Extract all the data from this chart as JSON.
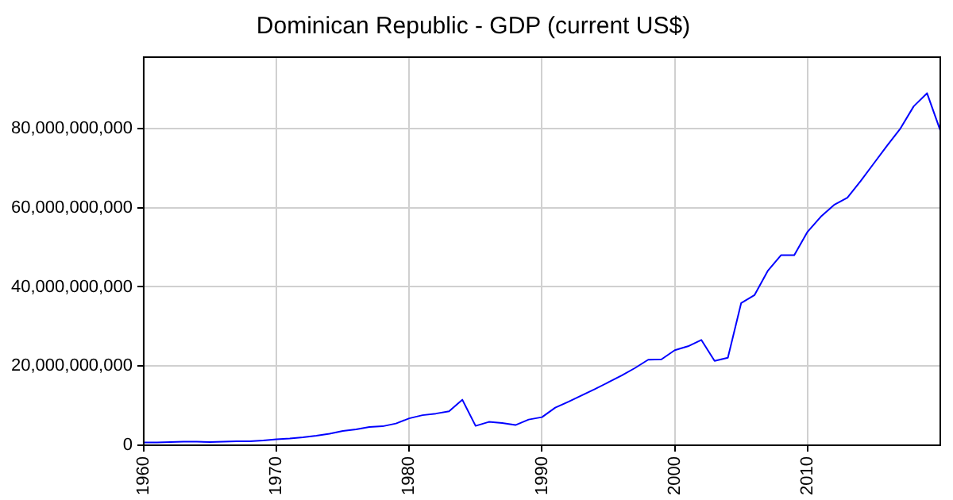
{
  "chart_data": {
    "type": "line",
    "title": "Dominican Republic - GDP (current US$)",
    "x": [
      1960,
      1961,
      1962,
      1963,
      1964,
      1965,
      1966,
      1967,
      1968,
      1969,
      1970,
      1971,
      1972,
      1973,
      1974,
      1975,
      1976,
      1977,
      1978,
      1979,
      1980,
      1981,
      1982,
      1983,
      1984,
      1985,
      1986,
      1987,
      1988,
      1989,
      1990,
      1991,
      1992,
      1993,
      1994,
      1995,
      1996,
      1997,
      1998,
      1999,
      2000,
      2001,
      2002,
      2003,
      2004,
      2005,
      2006,
      2007,
      2008,
      2009,
      2010,
      2011,
      2012,
      2013,
      2014,
      2015,
      2016,
      2017,
      2018,
      2019,
      2020
    ],
    "series": [
      {
        "color": "#0000ff",
        "values": [
          700000000,
          700000000,
          800000000,
          900000000,
          900000000,
          800000000,
          900000000,
          1000000000,
          1000000000,
          1200000000,
          1500000000,
          1700000000,
          2000000000,
          2400000000,
          2900000000,
          3600000000,
          4000000000,
          4600000000,
          4800000000,
          5500000000,
          6800000000,
          7600000000,
          8000000000,
          8600000000,
          11500000000,
          4900000000,
          5900000000,
          5600000000,
          5100000000,
          6500000000,
          7100000000,
          9500000000,
          11000000000,
          12600000000,
          14200000000,
          15900000000,
          17600000000,
          19500000000,
          21600000000,
          21700000000,
          24000000000,
          25000000000,
          26600000000,
          21300000000,
          22100000000,
          35900000000,
          37900000000,
          44000000000,
          48000000000,
          48000000000,
          53900000000,
          57700000000,
          60700000000,
          62500000000,
          66700000000,
          71200000000,
          75700000000,
          80000000000,
          85600000000,
          88900000000,
          79500000000
        ]
      }
    ],
    "xlim": [
      1960,
      2020
    ],
    "xticks": [
      1960,
      1970,
      1980,
      1990,
      2000,
      2010
    ],
    "ylim": [
      0,
      98000000000
    ],
    "yticks": [
      {
        "value": 0,
        "label": "0"
      },
      {
        "value": 20000000000,
        "label": "20,000,000,000"
      },
      {
        "value": 40000000000,
        "label": "40,000,000,000"
      },
      {
        "value": 60000000000,
        "label": "60,000,000,000"
      },
      {
        "value": 80000000000,
        "label": "80,000,000,000"
      }
    ],
    "grid": true,
    "legend": false,
    "marker": "none",
    "line_style": "solid"
  }
}
